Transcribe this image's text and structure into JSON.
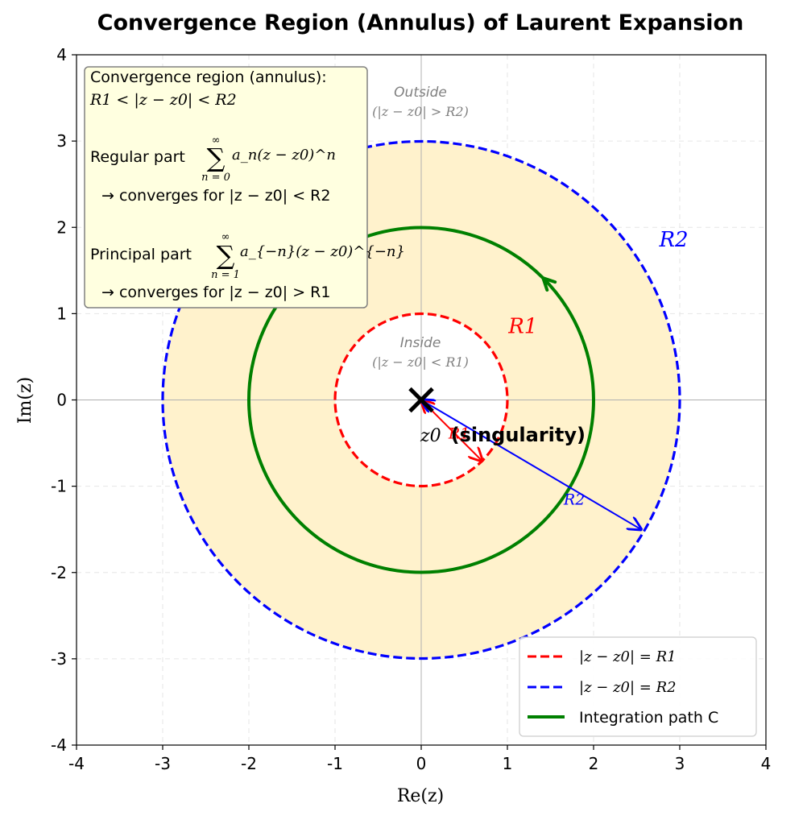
{
  "chart_data": {
    "type": "diagram-plot",
    "title": "Convergence Region (Annulus) of Laurent Expansion",
    "xlabel": "Re(z)",
    "ylabel": "Im(z)",
    "xlim": [
      -4,
      4
    ],
    "ylim": [
      -4,
      4
    ],
    "xticks": [
      -4,
      -3,
      -2,
      -1,
      0,
      1,
      2,
      3,
      4
    ],
    "yticks": [
      -4,
      -3,
      -2,
      -1,
      0,
      1,
      2,
      3,
      4
    ],
    "grid": true,
    "center": [
      0,
      0
    ],
    "annulus": {
      "inner_radius": 1,
      "outer_radius": 3,
      "fill_color": "#fff2cc"
    },
    "circles": [
      {
        "name": "|z − z0| = R1",
        "radius": 1,
        "style": "dashed",
        "color": "#ff0000"
      },
      {
        "name": "|z − z0| = R2",
        "radius": 3,
        "style": "dashed",
        "color": "#0000ff"
      },
      {
        "name": "Integration path C",
        "radius": 2,
        "style": "solid",
        "color": "#008000"
      }
    ],
    "path_arrow": {
      "radius": 2,
      "angle_deg": 45,
      "direction": "counterclockwise"
    },
    "radius_arrows": [
      {
        "label": "R1",
        "to": [
          0.707,
          -0.707
        ],
        "color": "#ff0000"
      },
      {
        "label": "R2",
        "to": [
          2.55,
          -1.5
        ],
        "color": "#0000ff"
      }
    ],
    "circle_labels": [
      {
        "text": "R1",
        "at": [
          1.18,
          0.86
        ],
        "color": "#ff0000"
      },
      {
        "text": "R2",
        "at": [
          2.93,
          1.86
        ],
        "color": "#0000ff"
      }
    ],
    "singularity": {
      "label": "z0",
      "suffix": "(singularity)",
      "at": [
        0,
        0
      ]
    },
    "region_notes": {
      "inside_title": "Inside",
      "inside_math": "(|z − z0| < R1)",
      "outside_title": "Outside",
      "outside_math": "(|z − z0| > R2)"
    },
    "info_box": {
      "line1": "Convergence region (annulus):",
      "line2": "R1 < |z − z0| < R2",
      "regular_label": "Regular part",
      "regular_expr": "a_n(z − z0)^n",
      "regular_sum_top": "∞",
      "regular_sum_bottom": "n = 0",
      "regular_conv": "→ converges for |z − z0| < R2",
      "principal_label": "Principal part",
      "principal_expr": "a_{−n}(z − z0)^{−n}",
      "principal_sum_top": "∞",
      "principal_sum_bottom": "n = 1",
      "principal_conv": "→ converges for |z − z0| > R1"
    },
    "legend": {
      "position": "lower right",
      "entries": [
        {
          "label": "|z − z0| = R1",
          "color": "#ff0000",
          "style": "dashed"
        },
        {
          "label": "|z − z0| = R2",
          "color": "#0000ff",
          "style": "dashed"
        },
        {
          "label": "Integration path C",
          "color": "#008000",
          "style": "solid"
        }
      ]
    }
  }
}
